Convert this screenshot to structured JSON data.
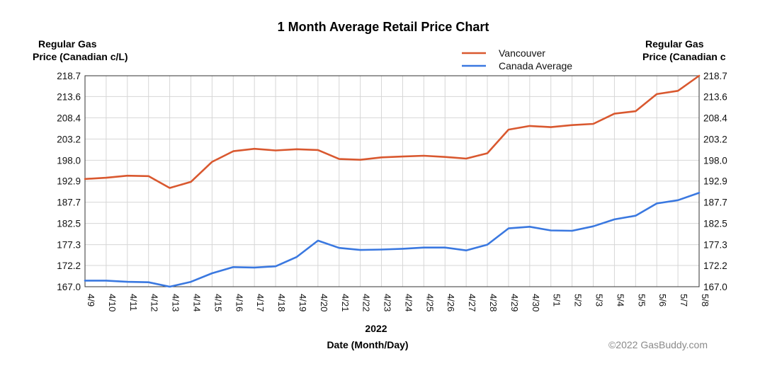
{
  "chart_data": {
    "type": "line",
    "title": "1 Month Average Retail Price Chart",
    "ylabel_left": [
      "Regular Gas",
      "Price (Canadian c/L)"
    ],
    "ylabel_right": [
      "Regular Gas",
      "Price (Canadian c"
    ],
    "xlabel_year": "2022",
    "xlabel": "Date (Month/Day)",
    "credit": "©2022 GasBuddy.com",
    "ylim": [
      167.0,
      218.7
    ],
    "yticks": [
      "167.0",
      "172.2",
      "177.3",
      "182.5",
      "187.7",
      "192.9",
      "198.0",
      "203.2",
      "208.4",
      "213.6",
      "218.7"
    ],
    "categories": [
      "4/9",
      "4/10",
      "4/11",
      "4/12",
      "4/13",
      "4/14",
      "4/15",
      "4/16",
      "4/17",
      "4/18",
      "4/19",
      "4/20",
      "4/21",
      "4/22",
      "4/23",
      "4/24",
      "4/25",
      "4/26",
      "4/27",
      "4/28",
      "4/29",
      "4/30",
      "5/1",
      "5/2",
      "5/3",
      "5/4",
      "5/5",
      "5/6",
      "5/7",
      "5/8"
    ],
    "series": [
      {
        "name": "Vancouver",
        "color": "#d9582f",
        "values": [
          193.4,
          193.7,
          194.2,
          194.1,
          191.2,
          192.7,
          197.6,
          200.2,
          200.8,
          200.4,
          200.7,
          200.5,
          198.3,
          198.1,
          198.7,
          198.9,
          199.1,
          198.8,
          198.4,
          199.7,
          205.5,
          206.4,
          206.1,
          206.6,
          206.9,
          209.4,
          210.0,
          214.2,
          215.0,
          218.7
        ]
      },
      {
        "name": "Canada Average",
        "color": "#3a78e0",
        "values": [
          168.5,
          168.5,
          168.2,
          168.1,
          167.0,
          168.2,
          170.3,
          171.8,
          171.7,
          172.0,
          174.3,
          178.3,
          176.5,
          176.0,
          176.1,
          176.3,
          176.6,
          176.6,
          175.9,
          177.3,
          181.3,
          181.7,
          180.8,
          180.7,
          181.8,
          183.5,
          184.4,
          187.4,
          188.2,
          190.0
        ]
      }
    ]
  }
}
